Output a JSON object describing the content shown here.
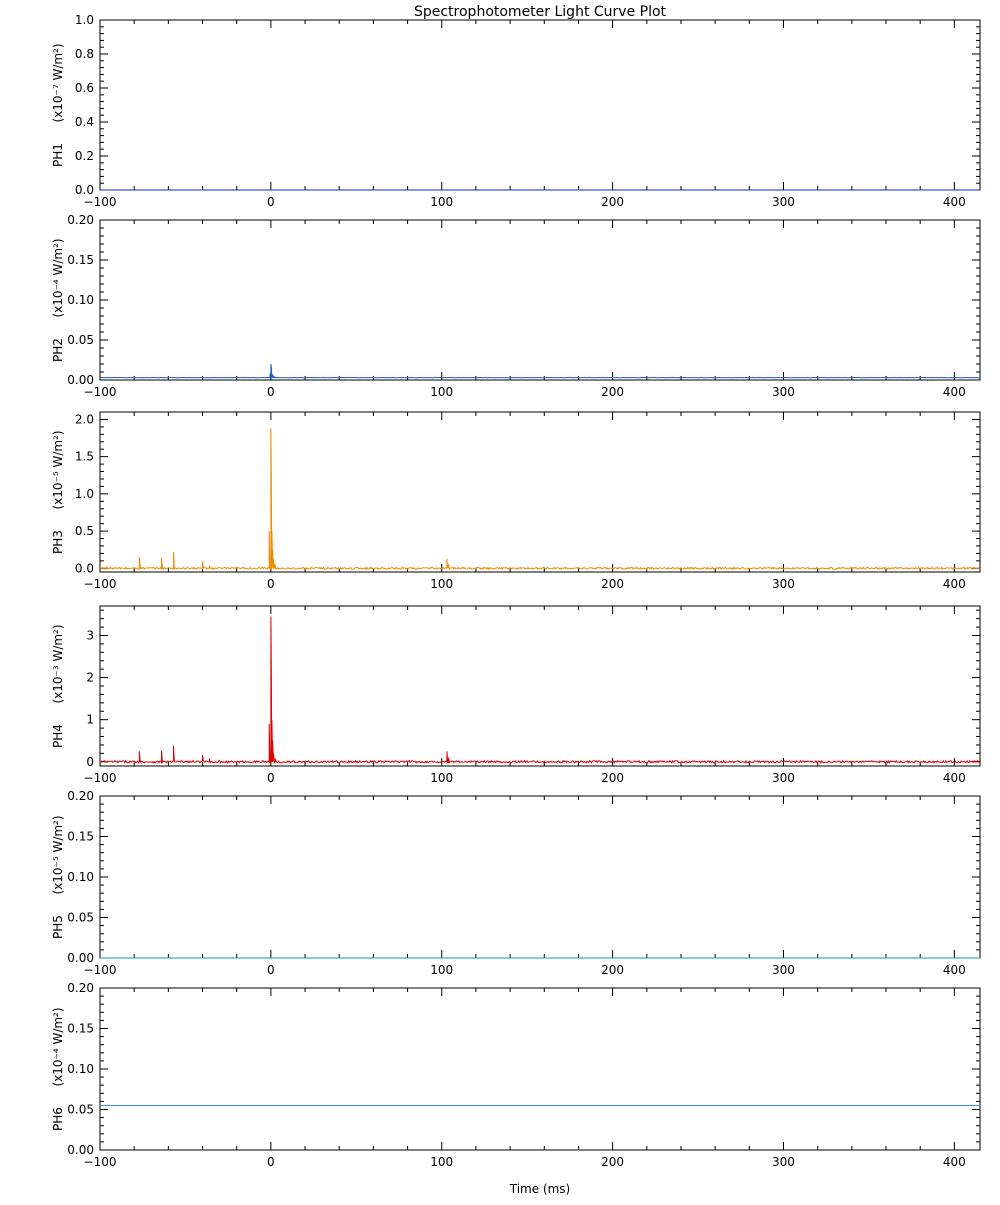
{
  "chart_data": {
    "title": "Spectrophotometer Light Curve Plot",
    "xlabel": "Time (ms)",
    "xlim": [
      -100,
      415
    ],
    "x_ticks": [
      -100,
      0,
      100,
      200,
      300,
      400
    ],
    "x_tick_labels": [
      "−100",
      "0",
      "100",
      "200",
      "300",
      "400"
    ],
    "panels": [
      {
        "name": "PH1",
        "unit_label": "(x10⁻⁷ W/m²)",
        "type": "line",
        "color": "#1f1fcc",
        "ylim": [
          0,
          1.0
        ],
        "y_ticks": [
          0,
          0.2,
          0.4,
          0.6,
          0.8,
          1.0
        ],
        "y_tick_labels": [
          "0.0",
          "0.2",
          "0.4",
          "0.6",
          "0.8",
          "1.0"
        ],
        "baseline": 0.0,
        "noise": 0,
        "x": [],
        "y": []
      },
      {
        "name": "PH2",
        "unit_label": "(x10⁻⁴ W/m²)",
        "type": "line",
        "color": "#1f5fcc",
        "ylim": [
          0,
          0.2
        ],
        "y_ticks": [
          0,
          0.05,
          0.1,
          0.15,
          0.2
        ],
        "y_tick_labels": [
          "0.00",
          "0.05",
          "0.10",
          "0.15",
          "0.20"
        ],
        "baseline": 0.003,
        "noise": 0.0002,
        "x": [
          -0.5,
          0,
          0.4,
          1,
          2,
          3
        ],
        "y": [
          0.008,
          0.02,
          0.014,
          0.007,
          0.004,
          0.003
        ]
      },
      {
        "name": "PH3",
        "unit_label": "(x10⁻⁵ W/m²)",
        "type": "line",
        "color": "#f08a00",
        "ylim": [
          -0.05,
          2.1
        ],
        "y_ticks": [
          0,
          0.5,
          1.0,
          1.5,
          2.0
        ],
        "y_tick_labels": [
          "0.0",
          "0.5",
          "1.0",
          "1.5",
          "2.0"
        ],
        "baseline": 0.0,
        "noise": 0.012,
        "x": [
          -77,
          -64,
          -57,
          -40,
          -36,
          -1,
          0,
          0.3,
          0.6,
          1,
          1.5,
          2.5,
          103,
          104
        ],
        "y": [
          0.15,
          0.14,
          0.22,
          0.09,
          0.04,
          0.5,
          1.88,
          1.1,
          0.5,
          0.25,
          0.12,
          0.05,
          0.13,
          0.06
        ]
      },
      {
        "name": "PH4",
        "unit_label": "(x10⁻³ W/m²)",
        "type": "line",
        "color": "#dd0000",
        "ylim": [
          -0.1,
          3.7
        ],
        "y_ticks": [
          0,
          1,
          2,
          3
        ],
        "y_tick_labels": [
          "0",
          "1",
          "2",
          "3"
        ],
        "baseline": 0.0,
        "noise": 0.025,
        "x": [
          -77,
          -64,
          -57,
          -40,
          -36,
          -1,
          0,
          0.3,
          0.6,
          1,
          1.5,
          2.5,
          103,
          104
        ],
        "y": [
          0.25,
          0.27,
          0.38,
          0.16,
          0.08,
          0.9,
          3.45,
          2.0,
          1.0,
          0.5,
          0.2,
          0.08,
          0.25,
          0.1
        ]
      },
      {
        "name": "PH5",
        "unit_label": "(x10⁻⁵ W/m²)",
        "type": "line",
        "color": "#11a09a",
        "ylim": [
          0,
          0.2
        ],
        "y_ticks": [
          0,
          0.05,
          0.1,
          0.15,
          0.2
        ],
        "y_tick_labels": [
          "0.00",
          "0.05",
          "0.10",
          "0.15",
          "0.20"
        ],
        "baseline": 0.0,
        "noise": 0,
        "x": [],
        "y": []
      },
      {
        "name": "PH6",
        "unit_label": "(x10⁻⁴ W/m²)",
        "type": "line",
        "color": "#3399dd",
        "ylim": [
          0,
          0.2
        ],
        "y_ticks": [
          0,
          0.05,
          0.1,
          0.15,
          0.2
        ],
        "y_tick_labels": [
          "0.00",
          "0.05",
          "0.10",
          "0.15",
          "0.20"
        ],
        "baseline": 0.055,
        "noise": 0,
        "x": [],
        "y": []
      }
    ]
  }
}
